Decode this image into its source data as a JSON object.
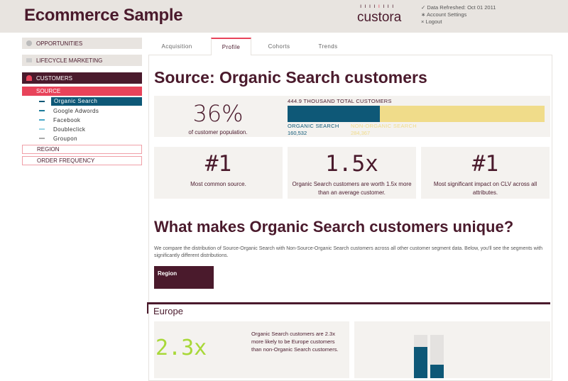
{
  "header": {
    "title": "Ecommerce Sample",
    "logo": "custora",
    "data_refreshed": "✓ Data Refreshed: Oct 01 2011",
    "account_settings": "∗ Account Settings",
    "logout": "× Logout"
  },
  "sidebar": {
    "items": [
      {
        "label": "OPPORTUNITIES",
        "icon": "hexagon-icon"
      },
      {
        "label": "LIFECYCLE MARKETING",
        "icon": "envelope-icon"
      },
      {
        "label": "CUSTOMERS",
        "icon": "user-icon"
      }
    ],
    "source_label": "SOURCE",
    "sources": [
      {
        "label": "Organic Search",
        "color": "#0e5877"
      },
      {
        "label": "Google Adwords",
        "color": "#1b7a9a"
      },
      {
        "label": "Facebook",
        "color": "#4aa8c8"
      },
      {
        "label": "Doubleclick",
        "color": "#9ad4e4"
      },
      {
        "label": "Groupon",
        "color": "#aaaaaa"
      }
    ],
    "region_label": "REGION",
    "order_frequency_label": "ORDER FREQUENCY"
  },
  "tabs": [
    {
      "label": "Acquisition"
    },
    {
      "label": "Profile",
      "active": true
    },
    {
      "label": "Cohorts"
    },
    {
      "label": "Trends"
    }
  ],
  "main": {
    "title": "Source: Organic Search customers",
    "population": {
      "percent": "36%",
      "caption": "of customer population.",
      "total": "444.9 THOUSAND TOTAL CUSTOMERS",
      "organic_label": "ORGANIC SEARCH",
      "organic_value": "160,532",
      "non_label": "NON-ORGANIC SEARCH",
      "non_value": "284,367",
      "organic_fraction": 0.36,
      "organic_color": "#0e5877",
      "non_color": "#f0dc8a"
    },
    "stats": [
      {
        "value": "#1",
        "caption": "Most common source."
      },
      {
        "value": "1.5x",
        "caption": "Organic Search customers are worth 1.5x more than an average customer."
      },
      {
        "value": "#1",
        "caption": "Most significant impact on CLV across all attributes."
      }
    ],
    "unique_title": "What makes Organic Search customers unique?",
    "unique_desc": "We compare the distribution of Source-Organic Search with Non-Source-Organic Search customers across all other customer segment data. Below, you'll see the segments with significantly different distributions.",
    "region_button": "Region",
    "segment": {
      "title": "Europe",
      "value": "2.3x",
      "desc": "Organic Search customers are 2.3x more likely to be Europe customers than non-Organic Search customers.",
      "bars": [
        {
          "fraction": 0.72
        },
        {
          "fraction": 0.31
        }
      ]
    }
  }
}
